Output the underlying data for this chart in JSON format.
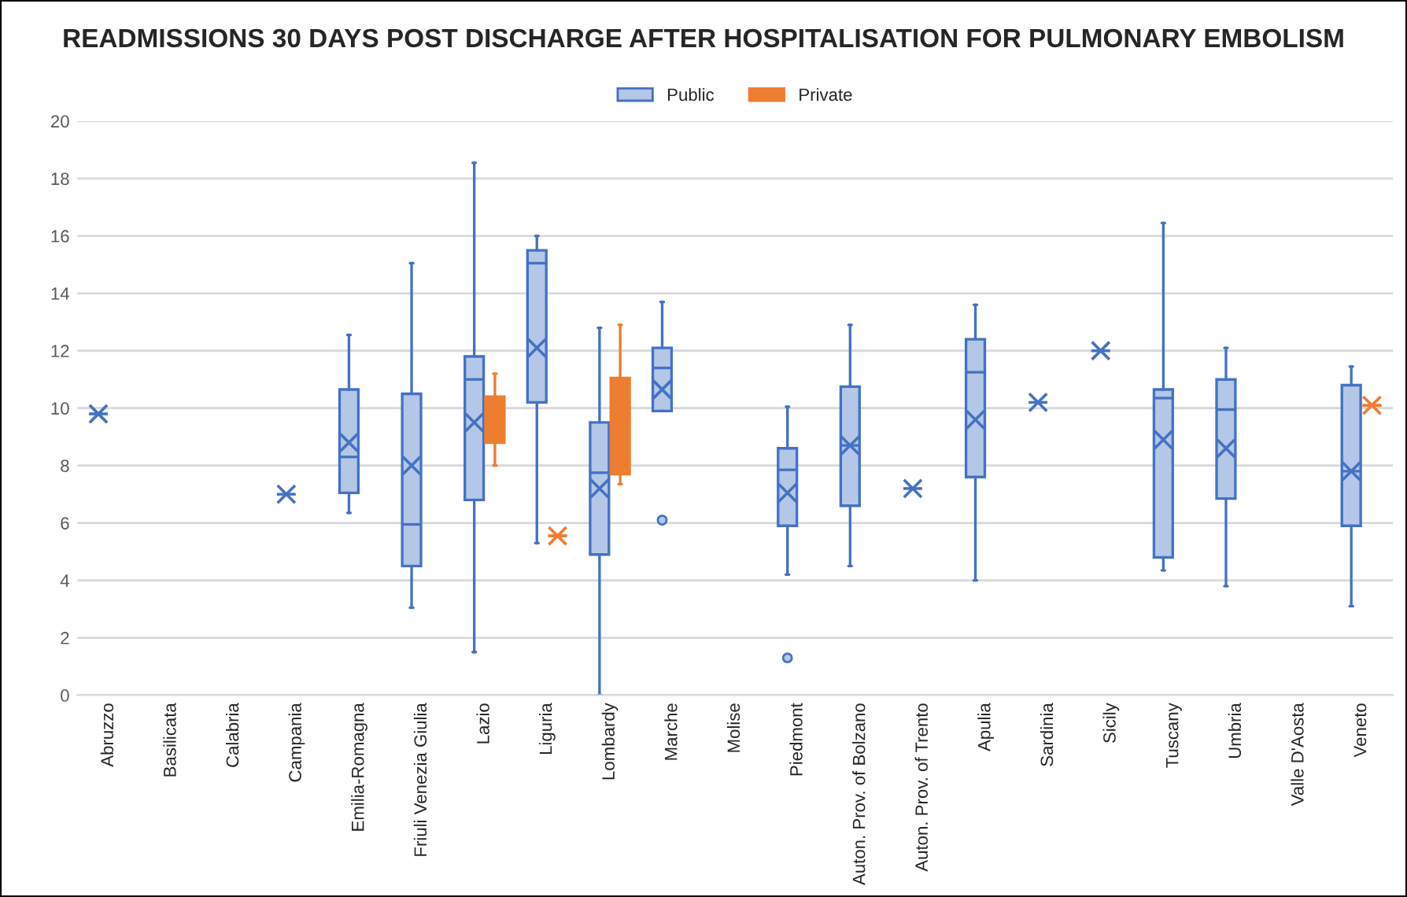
{
  "chart_data": {
    "type": "box",
    "title": "READMISSIONS 30 DAYS POST DISCHARGE AFTER HOSPITALISATION FOR PULMONARY EMBOLISM",
    "categories": [
      "Abruzzo",
      "Basilicata",
      "Calabria",
      "Campania",
      "Emilia-Romagna",
      "Friuli Venezia Giulia",
      "Lazio",
      "Liguria",
      "Lombardy",
      "Marche",
      "Molise",
      "Piedmont",
      "Auton. Prov. of Bolzano",
      "Auton. Prov. of Trento",
      "Apulia",
      "Sardinia",
      "Sicily",
      "Tuscany",
      "Umbria",
      "Valle D'Aosta",
      "Veneto"
    ],
    "series": [
      {
        "name": "Public",
        "color": "#b4c7e7",
        "boxes": [
          {
            "low": 9.8,
            "q1": 9.8,
            "median": 9.8,
            "q3": 9.8,
            "high": 9.8,
            "mean": 9.8
          },
          null,
          null,
          {
            "low": 7.0,
            "q1": 7.0,
            "median": 7.0,
            "q3": 7.0,
            "high": 7.0,
            "mean": 7.0
          },
          {
            "low": 6.35,
            "q1": 7.05,
            "median": 8.3,
            "q3": 10.65,
            "high": 12.55,
            "mean": 8.8
          },
          {
            "low": 3.05,
            "q1": 4.5,
            "median": 5.95,
            "q3": 10.5,
            "high": 15.05,
            "mean": 8.0
          },
          {
            "low": 1.5,
            "q1": 6.8,
            "median": 11.0,
            "q3": 11.8,
            "high": 18.55,
            "mean": 9.5
          },
          {
            "low": 5.3,
            "q1": 10.2,
            "median": 15.05,
            "q3": 15.5,
            "high": 16.0,
            "mean": 12.1
          },
          {
            "low": 0.0,
            "q1": 4.9,
            "median": 7.75,
            "q3": 9.5,
            "high": 12.8,
            "mean": 7.2
          },
          {
            "low": 9.9,
            "q1": 9.9,
            "median": 11.4,
            "q3": 12.1,
            "high": 13.7,
            "mean": 10.65,
            "outliers": [
              6.1
            ]
          },
          null,
          {
            "low": 4.2,
            "q1": 5.9,
            "median": 7.85,
            "q3": 8.6,
            "high": 10.05,
            "mean": 7.05,
            "outliers": [
              1.3
            ]
          },
          {
            "low": 4.5,
            "q1": 6.6,
            "median": 8.7,
            "q3": 10.75,
            "high": 12.9,
            "mean": 8.7
          },
          {
            "low": 7.2,
            "q1": 7.2,
            "median": 7.2,
            "q3": 7.2,
            "high": 7.2,
            "mean": 7.2
          },
          {
            "low": 4.0,
            "q1": 7.6,
            "median": 11.25,
            "q3": 12.4,
            "high": 13.6,
            "mean": 9.6
          },
          {
            "low": 10.2,
            "q1": 10.2,
            "median": 10.2,
            "q3": 10.2,
            "high": 10.2,
            "mean": 10.2
          },
          {
            "low": 12.0,
            "q1": 12.0,
            "median": 12.0,
            "q3": 12.0,
            "high": 12.0,
            "mean": 12.0
          },
          {
            "low": 4.35,
            "q1": 4.8,
            "median": 10.35,
            "q3": 10.65,
            "high": 16.45,
            "mean": 8.9
          },
          {
            "low": 3.8,
            "q1": 6.85,
            "median": 9.95,
            "q3": 11.0,
            "high": 12.1,
            "mean": 8.6
          },
          null,
          {
            "low": 3.1,
            "q1": 5.9,
            "median": 7.8,
            "q3": 10.8,
            "high": 11.45,
            "mean": 7.8
          }
        ]
      },
      {
        "name": "Private",
        "color": "#ed7d31",
        "boxes": [
          null,
          null,
          null,
          null,
          null,
          null,
          {
            "low": 8.0,
            "q1": 8.8,
            "median": 9.6,
            "q3": 10.4,
            "high": 11.2,
            "mean": 9.6
          },
          {
            "low": 5.55,
            "q1": 5.55,
            "median": 5.55,
            "q3": 5.55,
            "high": 5.55,
            "mean": 5.55
          },
          {
            "low": 7.35,
            "q1": 7.7,
            "median": 9.2,
            "q3": 11.05,
            "high": 12.9,
            "mean": 9.6
          },
          null,
          null,
          null,
          null,
          null,
          null,
          null,
          null,
          null,
          null,
          null,
          {
            "low": 10.1,
            "q1": 10.1,
            "median": 10.1,
            "q3": 10.1,
            "high": 10.1,
            "mean": 10.1
          }
        ]
      }
    ],
    "ylim": [
      0,
      20
    ],
    "yticks": [
      0,
      2,
      4,
      6,
      8,
      10,
      12,
      14,
      16,
      18,
      20
    ],
    "grid": "y",
    "legend": "top"
  }
}
